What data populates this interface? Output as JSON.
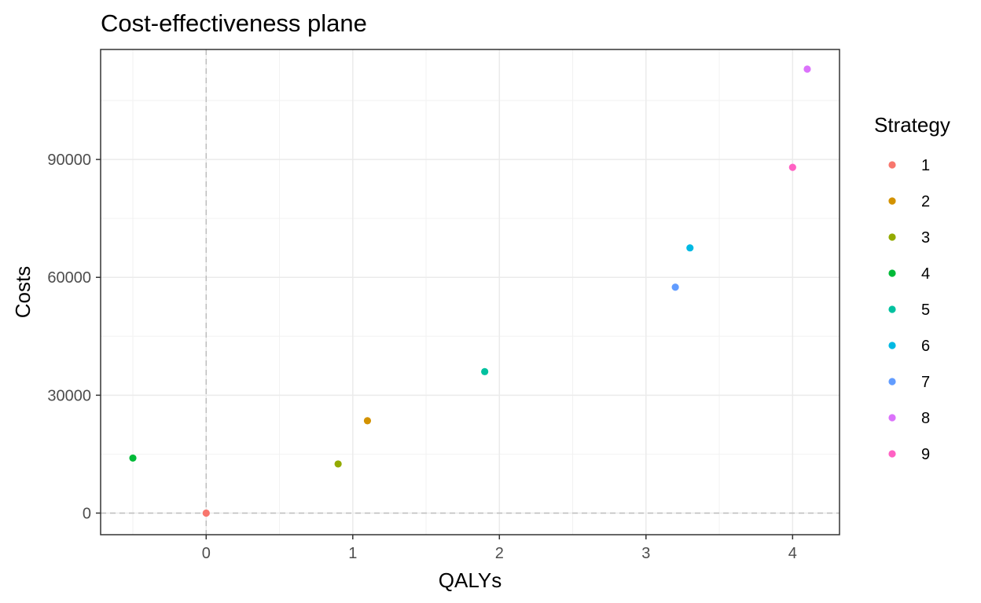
{
  "chart_data": {
    "type": "scatter",
    "title": "Cost-effectiveness plane",
    "xlabel": "QALYs",
    "ylabel": "Costs",
    "xlim": [
      -0.72,
      4.32
    ],
    "ylim": [
      -5500,
      118000
    ],
    "xticks": [
      "0",
      "1",
      "2",
      "3",
      "4"
    ],
    "xtick_values": [
      0,
      1,
      2,
      3,
      4
    ],
    "yticks": [
      "0",
      "30000",
      "60000",
      "90000"
    ],
    "ytick_values": [
      0,
      30000,
      60000,
      90000
    ],
    "x_minor_grid": [
      -0.5,
      0.5,
      1.5,
      2.5,
      3.5
    ],
    "y_minor_grid": [
      15000,
      45000,
      75000,
      105000
    ],
    "reference_lines": {
      "x": 0,
      "y": 0,
      "style": "dashed"
    },
    "grid": true,
    "legend": {
      "title": "Strategy",
      "position": "right"
    },
    "series": [
      {
        "name": "1",
        "color": "#F8766D",
        "x": 0.0,
        "y": 0
      },
      {
        "name": "2",
        "color": "#D39200",
        "x": 1.1,
        "y": 23500
      },
      {
        "name": "3",
        "color": "#93AA00",
        "x": 0.9,
        "y": 12500
      },
      {
        "name": "4",
        "color": "#00BA38",
        "x": -0.5,
        "y": 14000
      },
      {
        "name": "5",
        "color": "#00C19F",
        "x": 1.9,
        "y": 36000
      },
      {
        "name": "6",
        "color": "#00B9E3",
        "x": 3.3,
        "y": 67500
      },
      {
        "name": "7",
        "color": "#619CFF",
        "x": 3.2,
        "y": 57500
      },
      {
        "name": "8",
        "color": "#DB72FB",
        "x": 4.1,
        "y": 113000
      },
      {
        "name": "9",
        "color": "#FF61C3",
        "x": 4.0,
        "y": 88000
      }
    ]
  }
}
